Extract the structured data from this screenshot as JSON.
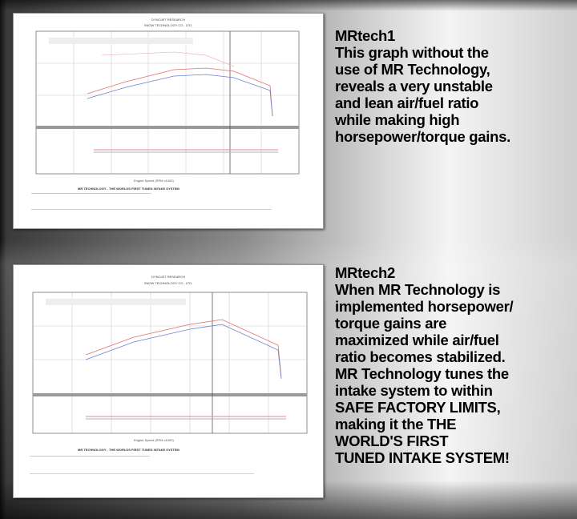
{
  "charts": [
    {
      "header": "DYNOJET RESEARCH",
      "company": "SNOW TECHNOLOGY CO., LTD.",
      "xlabel": "Engine Speed (RPM x1000)",
      "footer": "MR TECHNOLOGY - THE WORLDS FIRST TUNED INTAKE SYSTEM"
    },
    {
      "header": "DYNOJET RESEARCH",
      "company": "SNOW TECHNOLOGY CO., LTD.",
      "xlabel": "Engine Speed (RPM x1000)",
      "footer": "MR TECHNOLOGY - THE WORLDS FIRST TUNED INTAKE SYSTEM"
    }
  ],
  "sections": [
    {
      "title": "MRtech1",
      "lines": [
        "This graph without the",
        "use of MR Technology,",
        "reveals a very unstable",
        "and lean air/fuel ratio",
        "while making high",
        "horsepower/torque gains."
      ]
    },
    {
      "title": "MRtech2",
      "lines": [
        "When MR Technology is",
        "implemented horsepower/",
        "torque gains are",
        "maximized while air/fuel",
        "ratio becomes stabilized.",
        "MR Technology tunes the",
        "intake system to within",
        "SAFE FACTORY LIMITS,",
        "making it the THE",
        "WORLD'S FIRST",
        "TUNED INTAKE SYSTEM!"
      ]
    }
  ],
  "colors": {
    "run_red": "#e07070",
    "run_blue": "#7080d0"
  }
}
